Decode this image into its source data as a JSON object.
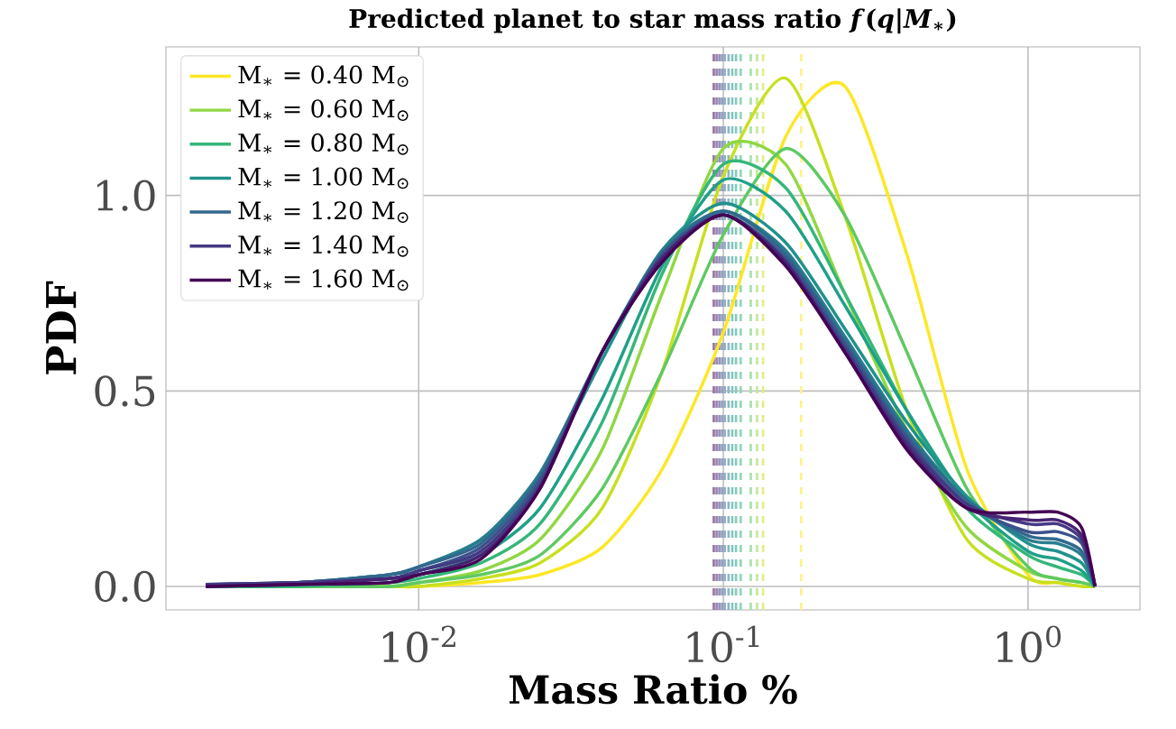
{
  "chart_data": {
    "type": "line",
    "title": "Predicted planet to star mass ratio *f*(*q*|*M*$_{∗}$)",
    "xlabel": "Mass Ratio %",
    "ylabel": "PDF",
    "log": "x",
    "grid": true,
    "legend": "top left",
    "line_style": "solid",
    "marker": "none",
    "xlim": [
      0.00148,
      2.33
    ],
    "ylim": [
      -0.06,
      1.38
    ],
    "xticks": [
      {
        "value": 0.01,
        "label": "10$^{-2}$"
      },
      {
        "value": 0.1,
        "label": "10$^{-1}$"
      },
      {
        "value": 1,
        "label": "10$^{0}$"
      }
    ],
    "yticks": [
      {
        "value": 0,
        "label": "0.0"
      },
      {
        "value": 0.5,
        "label": "0.5"
      },
      {
        "value": 1,
        "label": "1.0"
      }
    ],
    "x": [
      0.002,
      0.004,
      0.008,
      0.01,
      0.016,
      0.025,
      0.04,
      0.063,
      0.1,
      0.16,
      0.25,
      0.4,
      0.63,
      1.0,
      1.25,
      1.5,
      1.66
    ],
    "series": [
      {
        "name": "M$_{∗}$ = 0.40 M$_{⊙}$",
        "color": "#fde725",
        "values": [
          null,
          null,
          0,
          0,
          0.01,
          0.03,
          0.1,
          0.3,
          0.65,
          1.15,
          1.28,
          0.85,
          0.3,
          0.03,
          0.01,
          0,
          0
        ]
      },
      {
        "color": "#c8e020",
        "values": [
          0,
          0,
          0,
          0,
          0.02,
          0.06,
          0.2,
          0.55,
          1.05,
          1.3,
          0.95,
          0.45,
          0.12,
          0.02,
          0.01,
          0,
          0
        ]
      },
      {
        "name": "M$_{∗}$ = 0.60 M$_{⊙}$",
        "color": "#90d743",
        "values": [
          0,
          0,
          0,
          0.01,
          0.04,
          0.12,
          0.35,
          0.75,
          1.12,
          1.08,
          0.75,
          0.4,
          0.15,
          0.04,
          0.02,
          0.01,
          0
        ]
      },
      {
        "color": "#5ec962",
        "values": [
          0,
          0,
          0,
          0.01,
          0.03,
          0.08,
          0.25,
          0.55,
          0.9,
          1.12,
          0.95,
          0.6,
          0.25,
          0.05,
          0.02,
          0.01,
          0
        ]
      },
      {
        "name": "M$_{∗}$ = 0.80 M$_{⊙}$",
        "color": "#35b779",
        "values": [
          0,
          0,
          0.01,
          0.02,
          0.06,
          0.16,
          0.42,
          0.8,
          1.08,
          1.02,
          0.75,
          0.45,
          0.2,
          0.08,
          0.05,
          0.03,
          0
        ]
      },
      {
        "color": "#1fa088",
        "values": [
          0,
          0.01,
          0.02,
          0.03,
          0.08,
          0.2,
          0.48,
          0.82,
          1.04,
          0.96,
          0.72,
          0.45,
          0.22,
          0.09,
          0.07,
          0.04,
          0
        ]
      },
      {
        "name": "M$_{∗}$ = 1.00 M$_{⊙}$",
        "color": "#21918c",
        "values": [
          0.005,
          0.01,
          0.03,
          0.05,
          0.12,
          0.28,
          0.58,
          0.86,
          0.98,
          0.88,
          0.66,
          0.42,
          0.23,
          0.11,
          0.09,
          0.06,
          0
        ]
      },
      {
        "color": "#287d8e",
        "values": [
          0.005,
          0.01,
          0.03,
          0.05,
          0.12,
          0.29,
          0.6,
          0.86,
          0.96,
          0.86,
          0.64,
          0.4,
          0.22,
          0.12,
          0.11,
          0.08,
          0
        ]
      },
      {
        "name": "M$_{∗}$ = 1.20 M$_{⊙}$",
        "color": "#31688e",
        "values": [
          0.005,
          0.01,
          0.03,
          0.05,
          0.11,
          0.28,
          0.6,
          0.85,
          0.96,
          0.85,
          0.63,
          0.39,
          0.22,
          0.13,
          0.12,
          0.09,
          0
        ]
      },
      {
        "color": "#3b528b",
        "values": [
          0.005,
          0.01,
          0.02,
          0.04,
          0.1,
          0.27,
          0.6,
          0.85,
          0.95,
          0.84,
          0.62,
          0.38,
          0.21,
          0.14,
          0.14,
          0.11,
          0
        ]
      },
      {
        "name": "M$_{∗}$ = 1.40 M$_{⊙}$",
        "color": "#443983",
        "values": [
          0.005,
          0.01,
          0.02,
          0.04,
          0.09,
          0.26,
          0.6,
          0.84,
          0.95,
          0.83,
          0.61,
          0.37,
          0.21,
          0.16,
          0.16,
          0.12,
          0
        ]
      },
      {
        "color": "#482374",
        "values": [
          0,
          0.005,
          0.02,
          0.03,
          0.08,
          0.25,
          0.6,
          0.84,
          0.95,
          0.83,
          0.6,
          0.36,
          0.2,
          0.17,
          0.17,
          0.13,
          0
        ]
      },
      {
        "name": "M$_{∗}$ = 1.60 M$_{⊙}$",
        "color": "#440154",
        "values": [
          0,
          0.005,
          0.01,
          0.03,
          0.07,
          0.25,
          0.6,
          0.83,
          0.95,
          0.82,
          0.6,
          0.35,
          0.2,
          0.19,
          0.19,
          0.15,
          0
        ]
      }
    ],
    "ref_lines": [
      {
        "axis": "x",
        "value": 0.18,
        "color": "#fef287",
        "line_style": "dashed"
      },
      {
        "axis": "x",
        "value": 0.135,
        "color": "#e1ee84",
        "line_style": "dashed"
      },
      {
        "axis": "x",
        "value": 0.129,
        "color": "#c2e998",
        "line_style": "dashed"
      },
      {
        "axis": "x",
        "value": 0.123,
        "color": "#a6e1a9",
        "line_style": "dashed"
      },
      {
        "axis": "x",
        "value": 0.114,
        "color": "#90d7b5",
        "line_style": "dashed"
      },
      {
        "axis": "x",
        "value": 0.11,
        "color": "#84cbbe",
        "line_style": "dashed"
      },
      {
        "axis": "x",
        "value": 0.107,
        "color": "#85c2c0",
        "line_style": "dashed"
      },
      {
        "axis": "x",
        "value": 0.104,
        "color": "#89b7c1",
        "line_style": "dashed"
      },
      {
        "axis": "x",
        "value": 0.101,
        "color": "#8eacc1",
        "line_style": "dashed"
      },
      {
        "axis": "x",
        "value": 0.099,
        "color": "#93a0bf",
        "line_style": "dashed"
      },
      {
        "axis": "x",
        "value": 0.097,
        "color": "#9892bb",
        "line_style": "dashed"
      },
      {
        "axis": "x",
        "value": 0.095,
        "color": "#9a86b2",
        "line_style": "dashed"
      },
      {
        "axis": "x",
        "value": 0.093,
        "color": "#9873a1",
        "line_style": "dashed"
      }
    ]
  }
}
